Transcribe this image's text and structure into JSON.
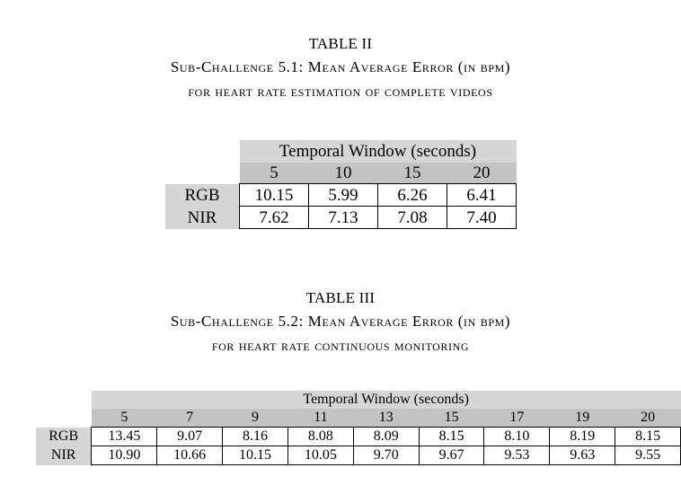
{
  "table2": {
    "label": "TABLE II",
    "caption_line1": "Sub-Challenge 5.1: Mean Average Error (in bpm)",
    "caption_line2": "for heart rate estimation of complete videos",
    "header": "Temporal Window (seconds)",
    "windows": [
      "5",
      "10",
      "15",
      "20"
    ],
    "rows": [
      {
        "label": "RGB",
        "values": [
          "10.15",
          "5.99",
          "6.26",
          "6.41"
        ]
      },
      {
        "label": "NIR",
        "values": [
          "7.62",
          "7.13",
          "7.08",
          "7.40"
        ]
      }
    ]
  },
  "table3": {
    "label": "TABLE III",
    "caption_line1": "Sub-Challenge 5.2: Mean Average Error (in bpm)",
    "caption_line2": "for heart rate continuous monitoring",
    "header": "Temporal Window (seconds)",
    "windows": [
      "5",
      "7",
      "9",
      "11",
      "13",
      "15",
      "17",
      "19",
      "20"
    ],
    "rows": [
      {
        "label": "RGB",
        "values": [
          "13.45",
          "9.07",
          "8.16",
          "8.08",
          "8.09",
          "8.15",
          "8.10",
          "8.19",
          "8.15"
        ]
      },
      {
        "label": "NIR",
        "values": [
          "10.90",
          "10.66",
          "10.15",
          "10.05",
          "9.70",
          "9.67",
          "9.53",
          "9.63",
          "9.55"
        ]
      }
    ]
  }
}
